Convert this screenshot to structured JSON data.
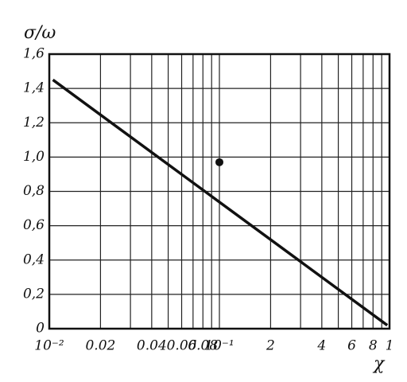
{
  "chart_data": {
    "type": "line",
    "y_label": "σ/ω",
    "x_label": "χ",
    "xscale": "log",
    "xlim": [
      0.01,
      1
    ],
    "ylim": [
      0,
      1.6
    ],
    "xticks": [
      {
        "value": 0.01,
        "label": "10⁻²"
      },
      0.02,
      0.04,
      0.06,
      0.08,
      {
        "value": 0.1,
        "label": "10⁻¹"
      },
      {
        "value": 0.2,
        "label": "2"
      },
      {
        "value": 0.4,
        "label": "4"
      },
      {
        "value": 0.6,
        "label": "6"
      },
      {
        "value": 0.8,
        "label": "8"
      },
      1
    ],
    "xticks_labels_short": true,
    "xminor": [
      0.03,
      0.05,
      0.07,
      0.09,
      0.3,
      0.5,
      0.7,
      0.9
    ],
    "yticks": [
      0,
      {
        "value": 0.2,
        "label": "0,2"
      },
      {
        "value": 0.4,
        "label": "0,4"
      },
      {
        "value": 0.6,
        "label": "0,6"
      },
      {
        "value": 0.8,
        "label": "0,8"
      },
      {
        "value": 1.0,
        "label": "1,0"
      },
      {
        "value": 1.2,
        "label": "1,2"
      },
      {
        "value": 1.4,
        "label": "1,4"
      },
      {
        "value": 1.6,
        "label": "1,6"
      }
    ],
    "grid": true,
    "series": [
      {
        "color": "#111",
        "x": [
          0.0105,
          0.97
        ],
        "values": [
          1.45,
          0.02
        ]
      }
    ],
    "points": {
      "color": "#111",
      "x": [
        0.1
      ],
      "values": [
        0.97
      ]
    }
  }
}
